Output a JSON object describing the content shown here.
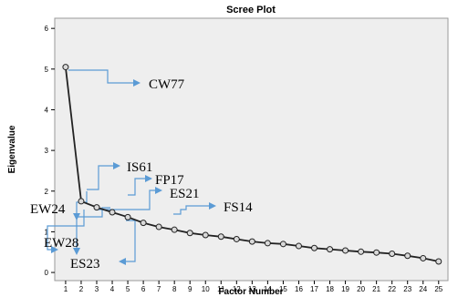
{
  "chart_data": {
    "type": "line",
    "title": "Scree Plot",
    "xlabel": "Factor Number",
    "ylabel": "Eigenvalue",
    "x": [
      1,
      2,
      3,
      4,
      5,
      6,
      7,
      8,
      9,
      10,
      11,
      12,
      13,
      14,
      15,
      16,
      17,
      18,
      19,
      20,
      21,
      22,
      23,
      24,
      25
    ],
    "xticks": [
      "1",
      "2",
      "3",
      "4",
      "5",
      "6",
      "7",
      "8",
      "9",
      "10",
      "11",
      "12",
      "13",
      "14",
      "15",
      "16",
      "17",
      "18",
      "19",
      "20",
      "21",
      "22",
      "23",
      "24",
      "25"
    ],
    "xlim": [
      0.3,
      25.6
    ],
    "ylim": [
      -0.2,
      6.25
    ],
    "yticks": [
      "0",
      "1",
      "2",
      "3",
      "4",
      "5",
      "6"
    ],
    "values": [
      5.05,
      1.75,
      1.6,
      1.48,
      1.36,
      1.22,
      1.12,
      1.05,
      0.97,
      0.92,
      0.88,
      0.82,
      0.76,
      0.72,
      0.7,
      0.65,
      0.6,
      0.57,
      0.54,
      0.51,
      0.49,
      0.46,
      0.41,
      0.35,
      0.27
    ],
    "grid": false,
    "annotations": [
      {
        "label": "CW77",
        "factor": 1
      },
      {
        "label": "IS61",
        "factor": 2
      },
      {
        "label": "FP17",
        "factor": 5
      },
      {
        "label": "ES21",
        "factor": 6
      },
      {
        "label": "FS14",
        "factor": 9
      },
      {
        "label": "EW24",
        "factor": 3
      },
      {
        "label": "EW28",
        "factor": 4
      },
      {
        "label": "ES23",
        "factor": 7
      }
    ],
    "colors": {
      "plot_bg": "#eeeeee",
      "line": "#222222",
      "marker_fill": "#d9d9d9",
      "arrow": "#5b9bd5"
    }
  }
}
